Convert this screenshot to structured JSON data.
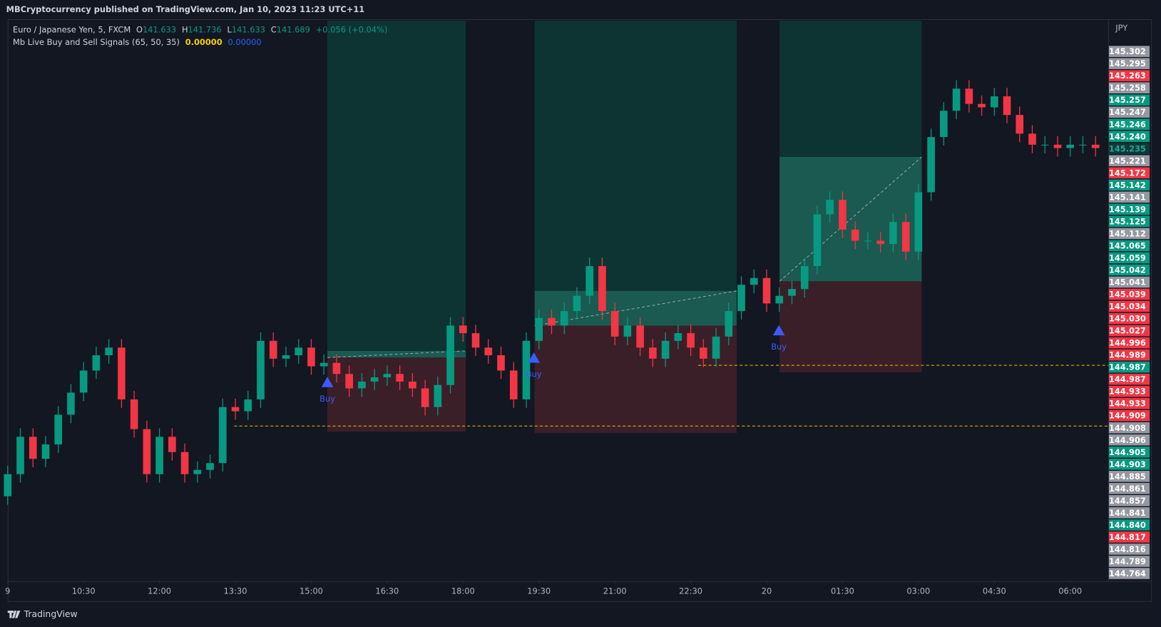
{
  "header": {
    "publisher": "MBCryptocurrency published on TradingView.com, Jan 10, 2023 11:23 UTC+11"
  },
  "legend": {
    "symbol": "Euro / Japanese Yen, 5, FXCM",
    "o_label": "O",
    "o": "141.633",
    "h_label": "H",
    "h": "141.736",
    "l_label": "L",
    "l": "141.633",
    "c_label": "C",
    "c": "141.689",
    "change": "+0.056 (+0.04%)",
    "indicator": "Mb Live Buy and Sell Signals (65, 50, 35)",
    "ind_value_1": "0.00000",
    "ind_value_2": "0.00000"
  },
  "signals": [
    "Buy",
    "Buy",
    "Buy"
  ],
  "footer": {
    "brand": "TradingView"
  },
  "chart_data": {
    "type": "candlestick",
    "currency": "JPY",
    "up_color": "#089981",
    "down_color": "#f23645",
    "xlim": [
      0,
      261
    ],
    "ylim": [
      144.7,
      145.36
    ],
    "xticks": [
      {
        "value": 0,
        "label": "9"
      },
      {
        "value": 18,
        "label": "10:30"
      },
      {
        "value": 36,
        "label": "12:00"
      },
      {
        "value": 54,
        "label": "13:30"
      },
      {
        "value": 72,
        "label": "15:00"
      },
      {
        "value": 90,
        "label": "16:30"
      },
      {
        "value": 108,
        "label": "18:00"
      },
      {
        "value": 126,
        "label": "19:30"
      },
      {
        "value": 144,
        "label": "21:00"
      },
      {
        "value": 162,
        "label": "22:30"
      },
      {
        "value": 180,
        "label": "20"
      },
      {
        "value": 198,
        "label": "01:30"
      },
      {
        "value": 216,
        "label": "03:00"
      },
      {
        "value": 234,
        "label": "04:30"
      },
      {
        "value": 252,
        "label": "06:00"
      }
    ],
    "x": [
      0,
      3,
      6,
      9,
      12,
      15,
      18,
      21,
      24,
      27,
      30,
      33,
      36,
      39,
      42,
      45,
      48,
      51,
      54,
      57,
      60,
      63,
      66,
      69,
      72,
      75,
      78,
      81,
      84,
      87,
      90,
      93,
      96,
      99,
      102,
      105,
      108,
      111,
      114,
      117,
      120,
      123,
      126,
      129,
      132,
      135,
      138,
      141,
      144,
      147,
      150,
      153,
      156,
      159,
      162,
      165,
      168,
      171,
      174,
      177,
      180,
      183,
      186,
      189,
      192,
      195,
      198,
      201,
      204,
      207,
      210,
      213,
      216,
      219,
      222,
      225,
      228,
      231,
      234,
      237,
      240,
      243,
      246,
      249,
      252,
      255,
      258
    ],
    "candles": [
      [
        144.8,
        144.836,
        144.79,
        144.826
      ],
      [
        144.826,
        144.88,
        144.816,
        144.87
      ],
      [
        144.87,
        144.88,
        144.834,
        144.844
      ],
      [
        144.844,
        144.871,
        144.834,
        144.861
      ],
      [
        144.861,
        144.906,
        144.851,
        144.896
      ],
      [
        144.896,
        144.932,
        144.886,
        144.922
      ],
      [
        144.922,
        144.958,
        144.912,
        144.948
      ],
      [
        144.948,
        144.976,
        144.938,
        144.966
      ],
      [
        144.966,
        144.985,
        144.956,
        144.975
      ],
      [
        144.975,
        144.985,
        144.904,
        144.914
      ],
      [
        144.914,
        144.924,
        144.869,
        144.879
      ],
      [
        144.879,
        144.889,
        144.816,
        144.826
      ],
      [
        144.826,
        144.88,
        144.816,
        144.87
      ],
      [
        144.87,
        144.88,
        144.842,
        144.852
      ],
      [
        144.852,
        144.862,
        144.816,
        144.826
      ],
      [
        144.826,
        144.841,
        144.816,
        144.831
      ],
      [
        144.831,
        144.849,
        144.821,
        144.839
      ],
      [
        144.839,
        144.915,
        144.829,
        144.905
      ],
      [
        144.905,
        144.915,
        144.89,
        144.9
      ],
      [
        144.9,
        144.924,
        144.89,
        144.914
      ],
      [
        144.914,
        144.993,
        144.904,
        144.983
      ],
      [
        144.983,
        144.993,
        144.952,
        144.962
      ],
      [
        144.962,
        144.976,
        144.952,
        144.966
      ],
      [
        144.966,
        144.985,
        144.956,
        144.975
      ],
      [
        144.975,
        144.985,
        144.943,
        144.953
      ],
      [
        144.953,
        144.967,
        144.943,
        144.957
      ],
      [
        144.957,
        144.967,
        144.934,
        144.944
      ],
      [
        144.944,
        144.954,
        144.917,
        144.927
      ],
      [
        144.927,
        144.945,
        144.917,
        144.935
      ],
      [
        144.935,
        144.95,
        144.925,
        144.94
      ],
      [
        144.94,
        144.954,
        144.93,
        144.944
      ],
      [
        144.944,
        144.954,
        144.925,
        144.935
      ],
      [
        144.935,
        144.945,
        144.917,
        144.927
      ],
      [
        144.927,
        144.937,
        144.895,
        144.905
      ],
      [
        144.905,
        144.941,
        144.895,
        144.931
      ],
      [
        144.931,
        145.011,
        144.921,
        145.001
      ],
      [
        145.001,
        145.011,
        144.982,
        144.992
      ],
      [
        144.992,
        145.002,
        144.965,
        144.975
      ],
      [
        144.975,
        144.985,
        144.956,
        144.966
      ],
      [
        144.966,
        144.976,
        144.938,
        144.948
      ],
      [
        144.948,
        144.958,
        144.904,
        144.914
      ],
      [
        144.914,
        144.993,
        144.904,
        144.983
      ],
      [
        144.983,
        145.02,
        144.973,
        145.01
      ],
      [
        145.01,
        145.02,
        144.991,
        145.001
      ],
      [
        145.001,
        145.028,
        144.991,
        145.018
      ],
      [
        145.018,
        145.046,
        145.008,
        145.036
      ],
      [
        145.036,
        145.081,
        145.026,
        145.071
      ],
      [
        145.071,
        145.081,
        145.008,
        145.018
      ],
      [
        145.018,
        145.028,
        144.978,
        144.988
      ],
      [
        144.988,
        145.011,
        144.978,
        145.001
      ],
      [
        145.001,
        145.011,
        144.965,
        144.975
      ],
      [
        144.975,
        144.985,
        144.952,
        144.962
      ],
      [
        144.962,
        144.993,
        144.952,
        144.983
      ],
      [
        144.983,
        145.002,
        144.973,
        144.992
      ],
      [
        144.992,
        145.002,
        144.965,
        144.975
      ],
      [
        144.975,
        144.985,
        144.952,
        144.962
      ],
      [
        144.962,
        144.998,
        144.952,
        144.988
      ],
      [
        144.988,
        145.028,
        144.978,
        145.018
      ],
      [
        145.018,
        145.059,
        145.008,
        145.049
      ],
      [
        145.049,
        145.067,
        145.039,
        145.057
      ],
      [
        145.057,
        145.067,
        145.017,
        145.027
      ],
      [
        145.027,
        145.046,
        145.017,
        145.036
      ],
      [
        145.036,
        145.054,
        145.026,
        145.044
      ],
      [
        145.044,
        145.081,
        145.034,
        145.071
      ],
      [
        145.071,
        145.142,
        145.061,
        145.132
      ],
      [
        145.132,
        145.159,
        145.122,
        145.149
      ],
      [
        145.149,
        145.159,
        145.104,
        145.114
      ],
      [
        145.114,
        145.124,
        145.091,
        145.101
      ],
      [
        145.101,
        145.111,
        145.091,
        145.101
      ],
      [
        145.101,
        145.111,
        145.087,
        145.097
      ],
      [
        145.097,
        145.133,
        145.087,
        145.123
      ],
      [
        145.123,
        145.133,
        145.078,
        145.088
      ],
      [
        145.088,
        145.168,
        145.078,
        145.158
      ],
      [
        145.158,
        145.233,
        145.148,
        145.223
      ],
      [
        145.223,
        145.264,
        145.213,
        145.254
      ],
      [
        145.254,
        145.29,
        145.244,
        145.28
      ],
      [
        145.28,
        145.29,
        145.252,
        145.262
      ],
      [
        145.262,
        145.272,
        145.248,
        145.258
      ],
      [
        145.258,
        145.281,
        145.248,
        145.271
      ],
      [
        145.271,
        145.281,
        145.239,
        145.249
      ],
      [
        145.249,
        145.259,
        145.217,
        145.227
      ],
      [
        145.227,
        145.237,
        145.204,
        145.214
      ],
      [
        145.214,
        145.224,
        145.204,
        145.214
      ],
      [
        145.214,
        145.224,
        145.2,
        145.21
      ],
      [
        145.21,
        145.224,
        145.2,
        145.214
      ],
      [
        145.214,
        145.224,
        145.204,
        145.214
      ],
      [
        145.214,
        145.224,
        145.2,
        145.21
      ]
    ],
    "price_tags": [
      {
        "label": "145.302",
        "color": "#9598a1"
      },
      {
        "label": "145.295",
        "color": "#9598a1"
      },
      {
        "label": "145.263",
        "color": "#f23645"
      },
      {
        "label": "145.258",
        "color": "#9598a1"
      },
      {
        "label": "145.257",
        "color": "#089981"
      },
      {
        "label": "145.247",
        "color": "#9598a1"
      },
      {
        "label": "145.246",
        "color": "#089981"
      },
      {
        "label": "145.240",
        "color": "#089981"
      },
      {
        "label": "145.235",
        "color": "#0d3a36"
      },
      {
        "label": "145.221",
        "color": "#9598a1"
      },
      {
        "label": "145.172",
        "color": "#f23645"
      },
      {
        "label": "145.142",
        "color": "#089981"
      },
      {
        "label": "145.141",
        "color": "#9598a1"
      },
      {
        "label": "145.139",
        "color": "#089981"
      },
      {
        "label": "145.125",
        "color": "#089981"
      },
      {
        "label": "145.112",
        "color": "#9598a1"
      },
      {
        "label": "145.065",
        "color": "#089981"
      },
      {
        "label": "145.059",
        "color": "#089981"
      },
      {
        "label": "145.042",
        "color": "#089981"
      },
      {
        "label": "145.041",
        "color": "#9598a1"
      },
      {
        "label": "145.039",
        "color": "#f23645"
      },
      {
        "label": "145.034",
        "color": "#f23645"
      },
      {
        "label": "145.030",
        "color": "#f23645"
      },
      {
        "label": "145.027",
        "color": "#f23645"
      },
      {
        "label": "144.996",
        "color": "#f23645"
      },
      {
        "label": "144.989",
        "color": "#f23645"
      },
      {
        "label": "144.987",
        "color": "#089981"
      },
      {
        "label": "144.987",
        "color": "#f23645"
      },
      {
        "label": "144.933",
        "color": "#f23645"
      },
      {
        "label": "144.933",
        "color": "#f23645"
      },
      {
        "label": "144.909",
        "color": "#f23645"
      },
      {
        "label": "144.908",
        "color": "#9598a1"
      },
      {
        "label": "144.906",
        "color": "#9598a1"
      },
      {
        "label": "144.905",
        "color": "#089981"
      },
      {
        "label": "144.903",
        "color": "#089981"
      },
      {
        "label": "144.885",
        "color": "#9598a1"
      },
      {
        "label": "144.861",
        "color": "#9598a1"
      },
      {
        "label": "144.857",
        "color": "#9598a1"
      },
      {
        "label": "144.841",
        "color": "#9598a1"
      },
      {
        "label": "144.840",
        "color": "#089981"
      },
      {
        "label": "144.817",
        "color": "#f23645"
      },
      {
        "label": "144.816",
        "color": "#9598a1"
      },
      {
        "label": "144.789",
        "color": "#9598a1"
      },
      {
        "label": "144.764",
        "color": "#9598a1"
      }
    ]
  }
}
